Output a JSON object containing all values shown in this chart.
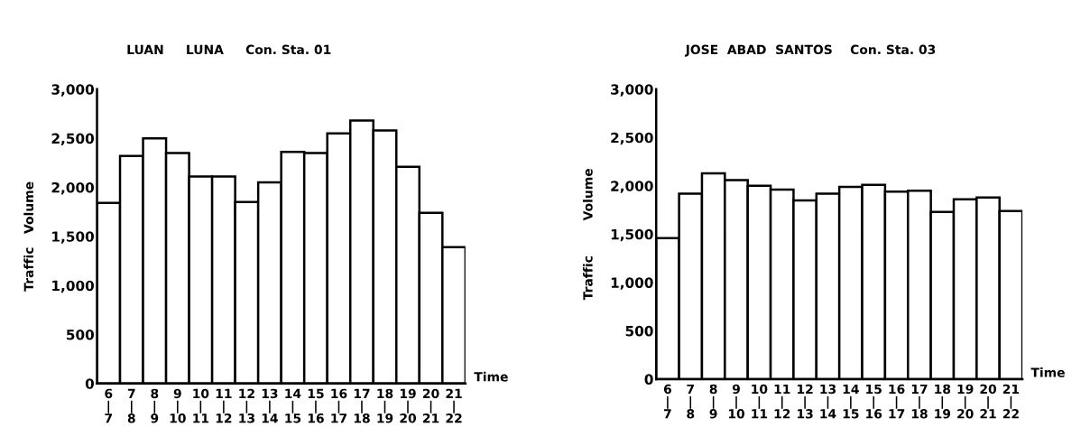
{
  "chart_data": [
    {
      "type": "bar",
      "title": "LUAN     LUNA     Con. Sta. 01",
      "xlabel": "Time",
      "ylabel": "Traffic   Volume",
      "categories": [
        "6\n|\n7",
        "7\n|\n8",
        "8\n|\n9",
        "9\n|\n10",
        "10\n|\n11",
        "11\n|\n12",
        "12\n|\n13",
        "13\n|\n14",
        "14\n|\n15",
        "15\n|\n16",
        "16\n|\n17",
        "17\n|\n18",
        "18\n|\n19",
        "19\n|\n20",
        "20\n|\n21",
        "21\n|\n22"
      ],
      "values": [
        1840,
        2320,
        2500,
        2350,
        2110,
        2110,
        1850,
        2050,
        2360,
        2350,
        2550,
        2680,
        2580,
        2210,
        1740,
        1390
      ],
      "color": "#ffffff",
      "ylim": [
        0,
        3000
      ],
      "yticks": [
        0,
        500,
        {
          "value": 1000,
          "label": "1,000"
        },
        {
          "value": 1500,
          "label": "1,500"
        },
        {
          "value": 2000,
          "label": "2,000"
        },
        {
          "value": 2500,
          "label": "2,500"
        },
        {
          "value": 3000,
          "label": "3,000"
        }
      ],
      "grid": false
    },
    {
      "type": "bar",
      "title": "JOSE  ABAD  SANTOS    Con. Sta. 03",
      "xlabel": "Time",
      "ylabel": "Traffic        Volume",
      "categories": [
        "6\n|\n7",
        "7\n|\n8",
        "8\n|\n9",
        "9\n|\n10",
        "10\n|\n11",
        "11\n|\n12",
        "12\n|\n13",
        "13\n|\n14",
        "14\n|\n15",
        "15\n|\n16",
        "16\n|\n17",
        "17\n|\n18",
        "18\n|\n19",
        "19\n|\n20",
        "20\n|\n21",
        "21\n|\n22"
      ],
      "values": [
        1460,
        1920,
        2130,
        2060,
        2000,
        1960,
        1850,
        1920,
        1990,
        2010,
        1940,
        1950,
        1730,
        1860,
        1880,
        1740
      ],
      "color": "#ffffff",
      "ylim": [
        0,
        3000
      ],
      "yticks": [
        0,
        500,
        {
          "value": 1000,
          "label": "1,000"
        },
        {
          "value": 1500,
          "label": "1,500"
        },
        {
          "value": 2000,
          "label": "2,000"
        },
        {
          "value": 2500,
          "label": "2,500"
        },
        {
          "value": 3000,
          "label": "3,000"
        }
      ],
      "grid": false
    }
  ]
}
